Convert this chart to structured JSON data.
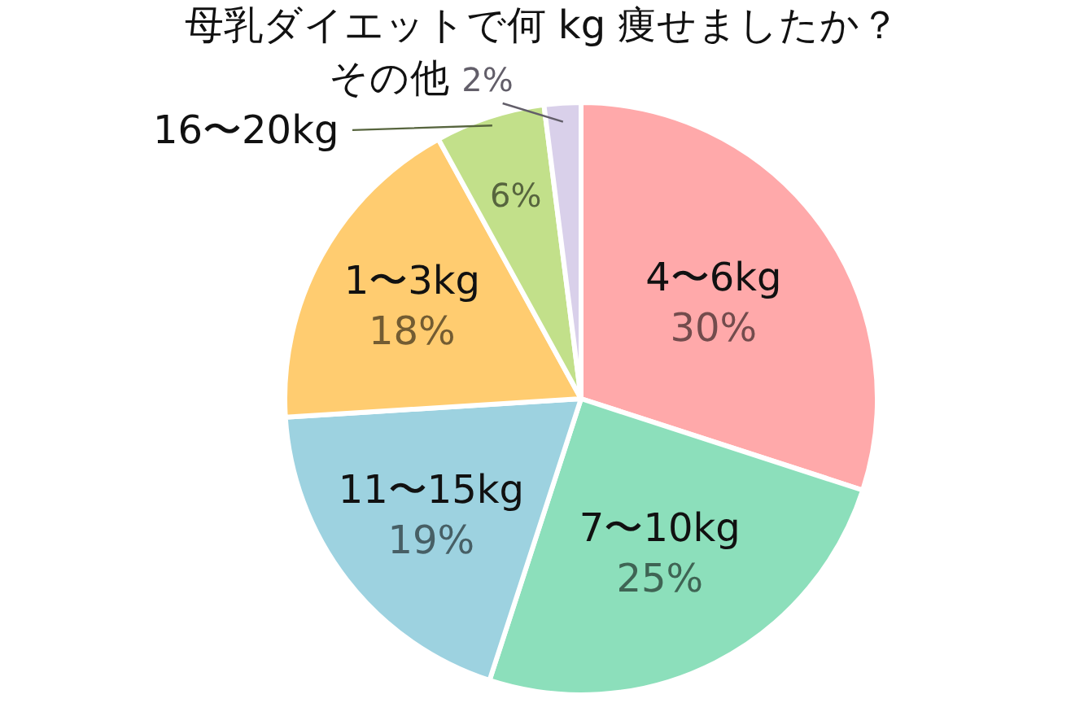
{
  "chart_data": {
    "type": "pie",
    "title": "母乳ダイエットで何 kg 痩せましたか？",
    "categories": [
      "4〜6kg",
      "7〜10kg",
      "11〜15kg",
      "1〜3kg",
      "16〜20kg",
      "その他"
    ],
    "values": [
      30,
      25,
      19,
      18,
      6,
      2
    ],
    "colors": [
      "#ffa9aa",
      "#8cdfbb",
      "#9dd2e0",
      "#ffcc70",
      "#c2e08a",
      "#d9d0ea"
    ],
    "value_labels": [
      "30%",
      "25%",
      "19%",
      "18%",
      "6%",
      "2%"
    ],
    "legend": false
  }
}
